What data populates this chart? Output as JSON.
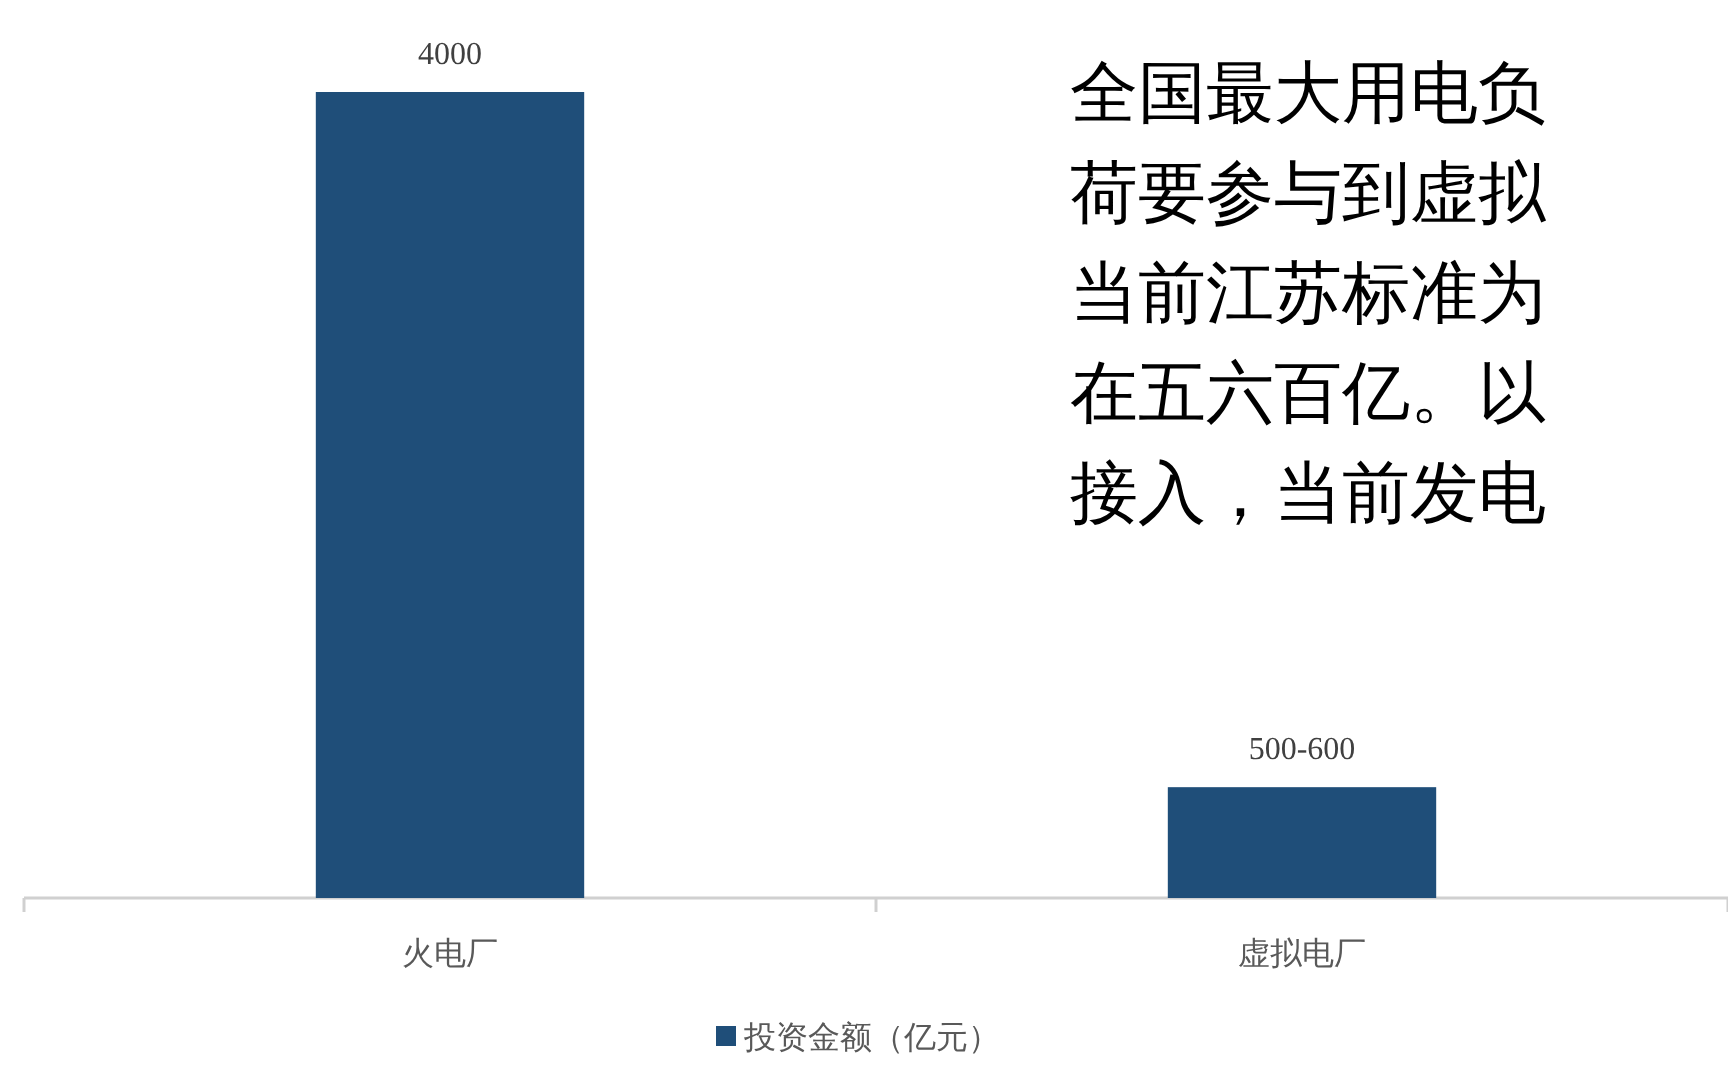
{
  "chart_data": {
    "type": "bar",
    "categories": [
      "火电厂",
      "虚拟电厂"
    ],
    "series": [
      {
        "name": "投资金额（亿元）",
        "color": "#1f4e79",
        "values": [
          4000,
          550
        ],
        "value_labels": [
          "4000",
          "500-600"
        ]
      }
    ],
    "legend": "bottom",
    "annotations": [
      "全国最大用电负",
      "荷要参与到虚拟",
      "当前江苏标准为",
      "在五六百亿。以",
      "接入，当前发电"
    ]
  }
}
